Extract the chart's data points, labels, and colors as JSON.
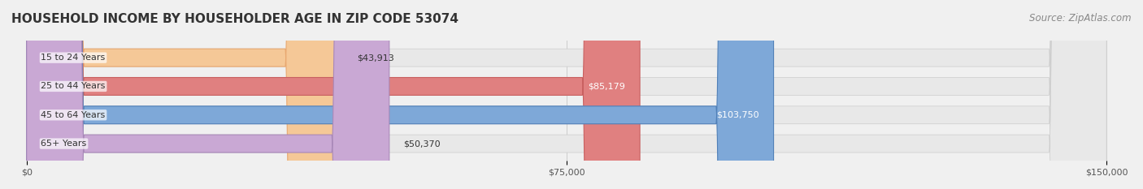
{
  "title": "HOUSEHOLD INCOME BY HOUSEHOLDER AGE IN ZIP CODE 53074",
  "source": "Source: ZipAtlas.com",
  "categories": [
    "15 to 24 Years",
    "25 to 44 Years",
    "45 to 64 Years",
    "65+ Years"
  ],
  "values": [
    43913,
    85179,
    103750,
    50370
  ],
  "bar_colors": [
    "#f5c897",
    "#e08080",
    "#7ea8d8",
    "#c9a8d4"
  ],
  "bar_edge_colors": [
    "#e8a870",
    "#c86060",
    "#5080b8",
    "#a888b8"
  ],
  "xlim": [
    0,
    150000
  ],
  "xticks": [
    0,
    75000,
    150000
  ],
  "xtick_labels": [
    "$0",
    "$75,000",
    "$150,000"
  ],
  "label_color_inside": "#ffffff",
  "label_color_outside": "#555555",
  "background_color": "#f0f0f0",
  "bar_background_color": "#e8e8e8",
  "title_fontsize": 11,
  "source_fontsize": 8.5
}
